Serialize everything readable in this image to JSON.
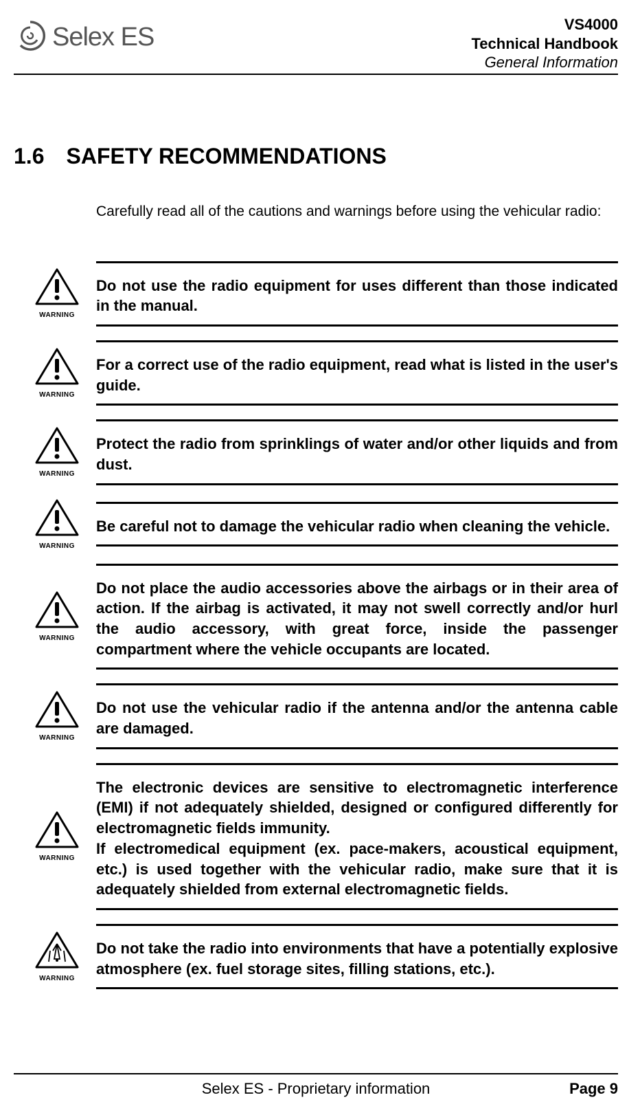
{
  "header": {
    "logo_text": "Selex ES",
    "product": "VS4000",
    "doc_title": "Technical Handbook",
    "subtitle": "General Information"
  },
  "section": {
    "number": "1.6",
    "title": "SAFETY RECOMMENDATIONS",
    "intro": "Carefully read all of the cautions and warnings before using the vehicular radio:"
  },
  "warnings": [
    {
      "label": "WARNING",
      "icon": "exclaim",
      "text": "Do not use the radio equipment for uses different than those indicated in the manual."
    },
    {
      "label": "WARNING",
      "icon": "exclaim",
      "text": "For a correct use of the radio equipment, read what is listed in the user's guide."
    },
    {
      "label": "WARNING",
      "icon": "exclaim",
      "text": "Protect the radio from sprinklings of water and/or other liquids and from dust."
    },
    {
      "label": "WARNING",
      "icon": "exclaim",
      "text": "Be careful not to damage the vehicular radio when cleaning the vehicle."
    },
    {
      "label": "WARNING",
      "icon": "exclaim",
      "text": "Do not place the audio accessories above the airbags or in their area of action.  If the airbag is activated, it may not swell correctly and/or hurl the audio accessory, with great force, inside the passenger compartment where the vehicle occupants are located."
    },
    {
      "label": "WARNING",
      "icon": "exclaim",
      "text": "Do not use the vehicular radio if the antenna and/or the antenna cable are damaged."
    },
    {
      "label": "WARNING",
      "icon": "exclaim",
      "text": "The electronic devices are sensitive to electromagnetic interference (EMI) if not adequately shielded, designed or configured differently for electromagnetic fields immunity.\nIf electromedical equipment (ex. pace-makers, acoustical equipment, etc.) is used together with the vehicular radio, make sure that it is adequately shielded from external electromagnetic fields."
    },
    {
      "label": "WARNING",
      "icon": "explosion",
      "text": "Do not take the radio into environments that have a potentially explosive atmosphere (ex. fuel storage sites, filling stations, etc.)."
    }
  ],
  "footer": {
    "center": "Selex ES - Proprietary information",
    "right": "Page 9"
  },
  "colors": {
    "text": "#000000",
    "logo_gray": "#555555",
    "rule": "#000000",
    "background": "#ffffff"
  },
  "fonts": {
    "body_size": 22,
    "header_right_size": 22,
    "section_title_size": 32,
    "intro_size": 21,
    "warning_label_size": 10,
    "logo_size": 38
  }
}
